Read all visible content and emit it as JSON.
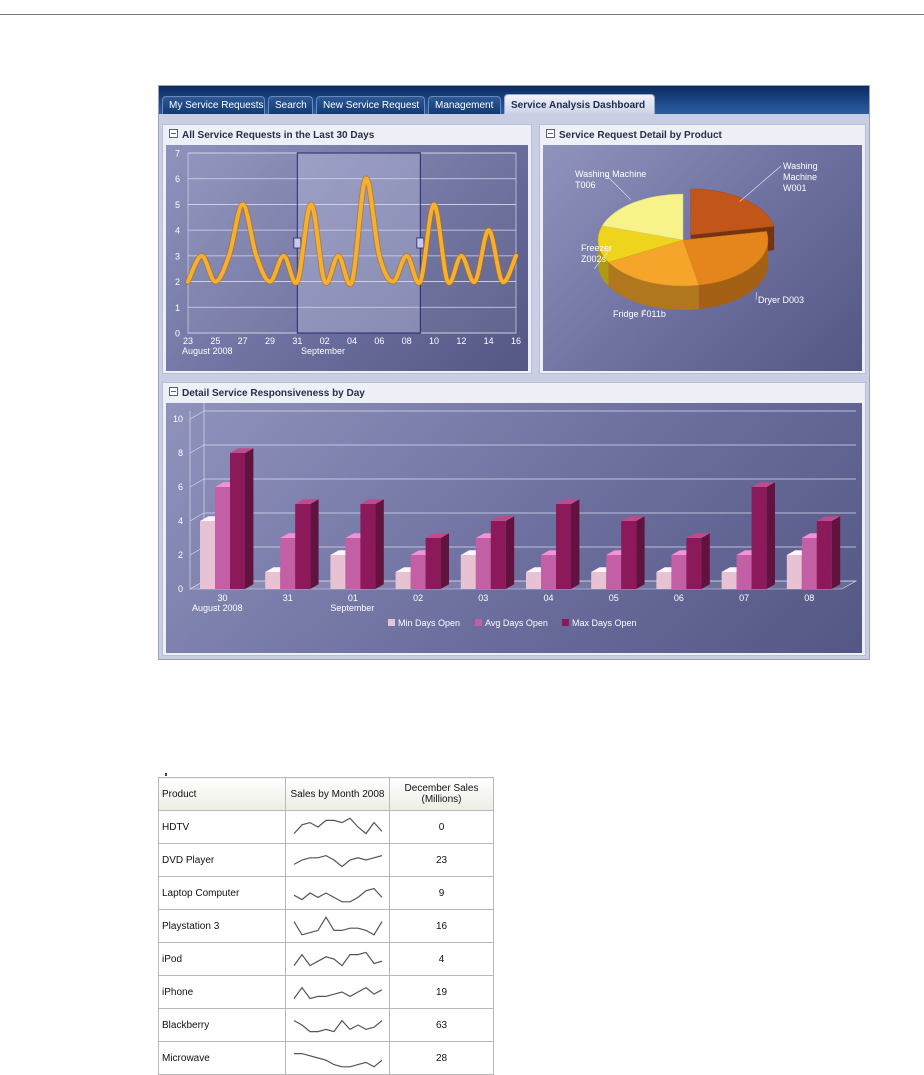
{
  "tabs": [
    {
      "label": "My Service Requests",
      "active": false
    },
    {
      "label": "Search",
      "active": false
    },
    {
      "label": "New Service Request",
      "active": false
    },
    {
      "label": "Management",
      "active": false
    },
    {
      "label": "Service Analysis Dashboard",
      "active": true
    }
  ],
  "colors": {
    "line": "#f6b02c",
    "bar_min": "#e6c2d2",
    "bar_avg": "#c35fa5",
    "bar_max": "#8c1a5a",
    "pie": [
      "#c2561a",
      "#e4861c",
      "#f4a52a",
      "#efd41e",
      "#f7f28a"
    ]
  },
  "panels": {
    "requests": {
      "title": "All Service Requests in the Last 30 Days"
    },
    "product": {
      "title": "Service Request Detail by Product"
    },
    "responsiveness": {
      "title": "Detail Service Responsiveness by Day"
    }
  },
  "chart_data": [
    {
      "type": "line",
      "title": "All Service Requests in the Last 30 Days",
      "x_tick_labels": [
        "23",
        "25",
        "27",
        "29",
        "31",
        "02",
        "04",
        "06",
        "08",
        "10",
        "12",
        "14",
        "16"
      ],
      "x_group_labels": [
        "August 2008",
        "September"
      ],
      "y_ticks": [
        0,
        1,
        2,
        3,
        4,
        5,
        6,
        7
      ],
      "ylim": [
        0,
        7
      ],
      "x": [
        "Aug 23",
        "Aug 24",
        "Aug 25",
        "Aug 26",
        "Aug 27",
        "Aug 28",
        "Aug 29",
        "Aug 30",
        "Aug 31",
        "Sep 01",
        "Sep 02",
        "Sep 03",
        "Sep 04",
        "Sep 05",
        "Sep 06",
        "Sep 07",
        "Sep 08",
        "Sep 09",
        "Sep 10",
        "Sep 11",
        "Sep 12",
        "Sep 13",
        "Sep 14",
        "Sep 15",
        "Sep 16"
      ],
      "series": [
        {
          "values": [
            2,
            3,
            2,
            3,
            5,
            3,
            2,
            3,
            2,
            5,
            2,
            3,
            2,
            6,
            3,
            2,
            3,
            2,
            5,
            2,
            3,
            2,
            4,
            2,
            3
          ]
        }
      ],
      "selection_range": [
        "Aug 31",
        "Sep 09"
      ],
      "grid": true
    },
    {
      "type": "pie",
      "title": "Service Request Detail by Product",
      "categories": [
        "Washing Machine W001",
        "Dryer D003",
        "Fridge F011b",
        "Freezer Z002s",
        "Washing Machine T006"
      ],
      "labels": [
        [
          "Washing",
          "Machine",
          "W001"
        ],
        [
          "Dryer D003"
        ],
        [
          "Fridge F011b"
        ],
        [
          "Freezer",
          "Z002s"
        ],
        [
          "Washing Machine",
          "T006"
        ]
      ],
      "values": [
        22,
        25,
        20,
        13,
        20
      ]
    },
    {
      "type": "bar",
      "title": "Detail Service Responsiveness by Day",
      "categories": [
        "30",
        "31",
        "01",
        "02",
        "03",
        "04",
        "05",
        "06",
        "07",
        "08"
      ],
      "x_group_labels": [
        "August 2008",
        "September"
      ],
      "y_ticks": [
        0,
        2,
        4,
        6,
        8,
        10
      ],
      "ylim": [
        0,
        10
      ],
      "series": [
        {
          "name": "Min Days Open",
          "values": [
            4,
            1,
            2,
            1,
            2,
            1,
            1,
            1,
            1,
            2
          ]
        },
        {
          "name": "Avg Days Open",
          "values": [
            6,
            3,
            3,
            2,
            3,
            2,
            2,
            2,
            2,
            3
          ]
        },
        {
          "name": "Max Days Open",
          "values": [
            8,
            5,
            5,
            3,
            4,
            5,
            4,
            3,
            6,
            4
          ]
        }
      ],
      "legend_position": "bottom",
      "grid": true
    }
  ],
  "sales_table": {
    "headers": {
      "product": "Product",
      "sparkline": "Sales by Month 2008",
      "december": [
        "December Sales",
        "(Millions)"
      ]
    },
    "rows": [
      {
        "product": "HDTV",
        "monthly": [
          2,
          6,
          7,
          5,
          8,
          8,
          7,
          9,
          5,
          2,
          7,
          3
        ],
        "december": "0"
      },
      {
        "product": "DVD Player",
        "monthly": [
          3,
          5,
          6,
          6,
          7,
          5,
          2,
          5,
          6,
          5,
          6,
          7
        ],
        "december": "23"
      },
      {
        "product": "Laptop Computer",
        "monthly": [
          4,
          2,
          5,
          3,
          5,
          3,
          1,
          1,
          3,
          6,
          7,
          3
        ],
        "december": "9"
      },
      {
        "product": "Playstation 3",
        "monthly": [
          7,
          1,
          2,
          3,
          9,
          3,
          3,
          4,
          4,
          3,
          1,
          7
        ],
        "december": "16"
      },
      {
        "product": "iPod",
        "monthly": [
          2,
          7,
          2,
          4,
          6,
          5,
          2,
          7,
          7,
          8,
          3,
          4
        ],
        "december": "4"
      },
      {
        "product": "iPhone",
        "monthly": [
          2,
          7,
          2,
          3,
          3,
          4,
          5,
          3,
          5,
          7,
          4,
          6
        ],
        "december": "19"
      },
      {
        "product": "Blackberry",
        "monthly": [
          7,
          5,
          2,
          2,
          3,
          2,
          7,
          3,
          5,
          3,
          4,
          7
        ],
        "december": "63"
      },
      {
        "product": "Microwave",
        "monthly": [
          7,
          7,
          6,
          5,
          4,
          2,
          1,
          1,
          2,
          3,
          1,
          4
        ],
        "december": "28"
      }
    ]
  }
}
